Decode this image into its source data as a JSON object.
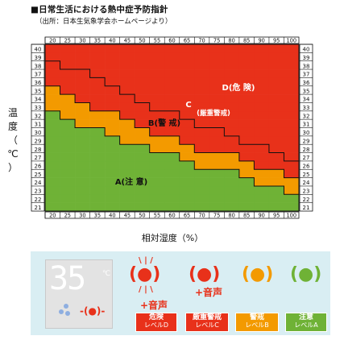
{
  "header": {
    "title": "■日常生活における熱中症予防指針",
    "source": "（出所：日本生気象学会ホームページより）"
  },
  "chart_data": {
    "type": "heatmap",
    "xlabel": "相対湿度（%）",
    "ylabel": [
      "温",
      "度",
      "（",
      "℃",
      "）"
    ],
    "x_ticks": [
      20,
      25,
      30,
      35,
      40,
      45,
      50,
      55,
      60,
      65,
      70,
      75,
      80,
      85,
      90,
      95,
      100
    ],
    "y_ticks": [
      21,
      22,
      23,
      24,
      25,
      26,
      27,
      28,
      29,
      30,
      31,
      32,
      33,
      34,
      35,
      36,
      37,
      38,
      39,
      40
    ],
    "zones": [
      {
        "key": "A",
        "label": "A(注意)",
        "level": "注意",
        "color": "#6fb236"
      },
      {
        "key": "B",
        "label": "B(警戒)",
        "level": "警戒",
        "color": "#f39a00"
      },
      {
        "key": "C",
        "label": "C(厳重警戒)",
        "level": "厳重警戒",
        "color": "#e8311a"
      },
      {
        "key": "D",
        "label": "D(危険)",
        "level": "危険",
        "color": "#e8311a"
      }
    ],
    "zone_labels": {
      "A": "A(注 意)",
      "B": "B(警 戒)",
      "C": "C",
      "C_sub": "(厳重警戒)",
      "D": "D(危 険)"
    },
    "thresholds": {
      "A_max_temp": [
        32,
        31,
        30,
        30,
        29,
        28,
        28,
        27,
        27,
        26,
        25,
        25,
        25,
        24,
        23,
        23,
        22
      ],
      "B_max_temp": [
        35,
        34,
        33,
        32,
        32,
        31,
        30,
        29,
        29,
        28,
        27,
        27,
        27,
        26,
        25,
        25,
        24
      ],
      "C_max_temp": [
        38,
        37,
        37,
        36,
        35,
        34,
        33,
        32,
        32,
        31,
        30,
        30,
        29,
        28,
        28,
        27,
        26
      ]
    },
    "grid": true
  },
  "legend": {
    "lcd_value": "35",
    "lcd_unit": "℃",
    "sound_label": "+音声",
    "lamps": [
      {
        "symbol": "(●)",
        "color": "#e8311a"
      },
      {
        "symbol": "(●)",
        "color": "#e8311a"
      },
      {
        "symbol": "(●)",
        "color": "#f39a00"
      },
      {
        "symbol": "(●)",
        "color": "#6fb236"
      }
    ],
    "badges": [
      {
        "name": "危険",
        "level": "レベルD",
        "color": "#e8311a"
      },
      {
        "name": "厳重警戒",
        "level": "レベルC",
        "color": "#e8311a"
      },
      {
        "name": "警戒",
        "level": "レベルB",
        "color": "#f39a00"
      },
      {
        "name": "注意",
        "level": "レベルA",
        "color": "#6fb236"
      }
    ]
  }
}
